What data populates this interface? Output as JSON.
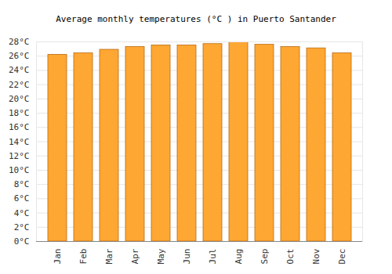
{
  "chart_data": {
    "type": "bar",
    "title": "Average monthly temperatures (°C ) in Puerto Santander",
    "categories": [
      "Jan",
      "Feb",
      "Mar",
      "Apr",
      "May",
      "Jun",
      "Jul",
      "Aug",
      "Sep",
      "Oct",
      "Nov",
      "Dec"
    ],
    "values": [
      26.2,
      26.4,
      26.9,
      27.3,
      27.5,
      27.5,
      27.7,
      28.0,
      27.6,
      27.3,
      27.1,
      26.4
    ],
    "color": "#ffa733",
    "ylim": [
      0,
      28
    ],
    "yticks": [
      {
        "value": 0,
        "label": "0°C"
      },
      {
        "value": 2,
        "label": "2°C"
      },
      {
        "value": 4,
        "label": "4°C"
      },
      {
        "value": 6,
        "label": "6°C"
      },
      {
        "value": 8,
        "label": "8°C"
      },
      {
        "value": 10,
        "label": "10°C"
      },
      {
        "value": 12,
        "label": "12°C"
      },
      {
        "value": 14,
        "label": "14°C"
      },
      {
        "value": 16,
        "label": "16°C"
      },
      {
        "value": 18,
        "label": "18°C"
      },
      {
        "value": 20,
        "label": "20°C"
      },
      {
        "value": 22,
        "label": "22°C"
      },
      {
        "value": 24,
        "label": "24°C"
      },
      {
        "value": 26,
        "label": "26°C"
      },
      {
        "value": 28,
        "label": "28°C"
      }
    ],
    "grid": true
  }
}
